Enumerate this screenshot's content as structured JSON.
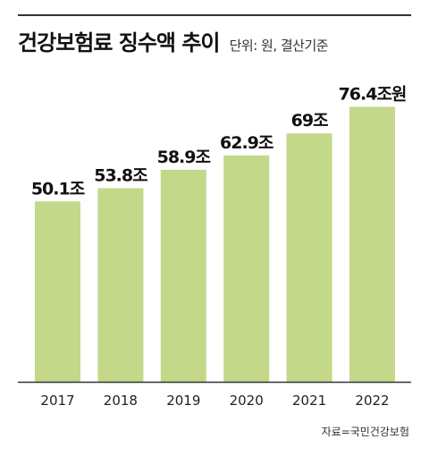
{
  "header": {
    "title": "건강보험료 징수액 추이",
    "subtitle": "단위: 원, 결산기준"
  },
  "footer": {
    "source": "자료=국민건강보험"
  },
  "colors": {
    "bar": "#c4d88a",
    "axis": "#333333",
    "rule": "#333333"
  },
  "chart_data": {
    "type": "bar",
    "title": "건강보험료 징수액 추이",
    "xlabel": "",
    "ylabel": "",
    "categories": [
      "2017",
      "2018",
      "2019",
      "2020",
      "2021",
      "2022"
    ],
    "values": [
      50.1,
      53.8,
      58.9,
      62.9,
      69,
      76.4
    ],
    "data_labels": [
      "50.1조",
      "53.8조",
      "58.9조",
      "62.9조",
      "69조",
      "76.4조원"
    ],
    "ylim": [
      0,
      80
    ],
    "grid": false,
    "legend": "none"
  }
}
